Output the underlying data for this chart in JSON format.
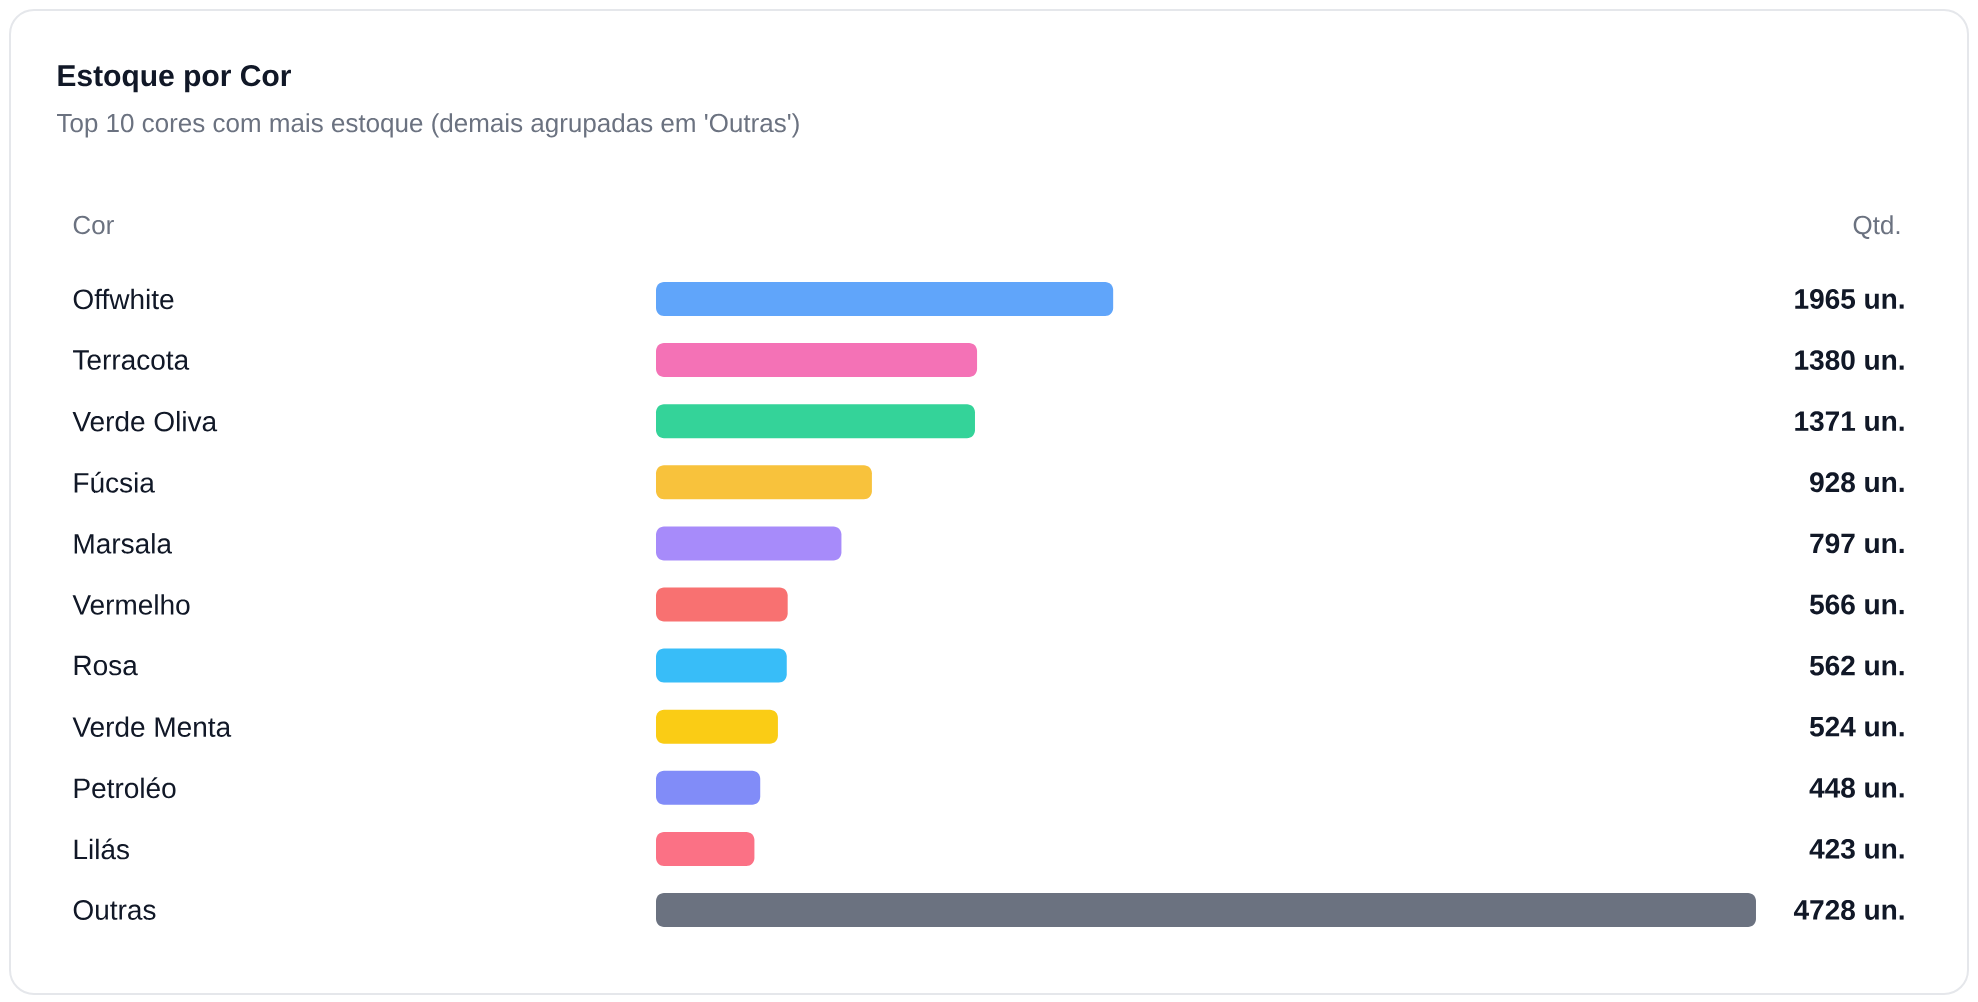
{
  "chart_data": {
    "type": "bar",
    "orientation": "horizontal",
    "title": "Estoque por Cor",
    "subtitle": "Top 10 cores com mais estoque (demais agrupadas em 'Outras')",
    "ylabel": "Cor",
    "xlabel": "Qtd.",
    "categories": [
      "Offwhite",
      "Terracota",
      "Verde Oliva",
      "Fúcsia",
      "Marsala",
      "Vermelho",
      "Rosa",
      "Verde Menta",
      "Petroléo",
      "Lilás",
      "Outras"
    ],
    "values": [
      1965,
      1380,
      1371,
      928,
      797,
      566,
      562,
      524,
      448,
      423,
      4728
    ],
    "colors": [
      "#60a5fa",
      "#f472b6",
      "#34d399",
      "#f8c23c",
      "#a78bfa",
      "#f87171",
      "#38bdf8",
      "#facc15",
      "#818cf8",
      "#fb7185",
      "#6b7280"
    ],
    "value_labels": [
      "1965 un.",
      "1380 un.",
      "1371 un.",
      "928 un.",
      "797 un.",
      "566 un.",
      "562 un.",
      "524 un.",
      "448 un.",
      "423 un.",
      "4728 un."
    ]
  }
}
